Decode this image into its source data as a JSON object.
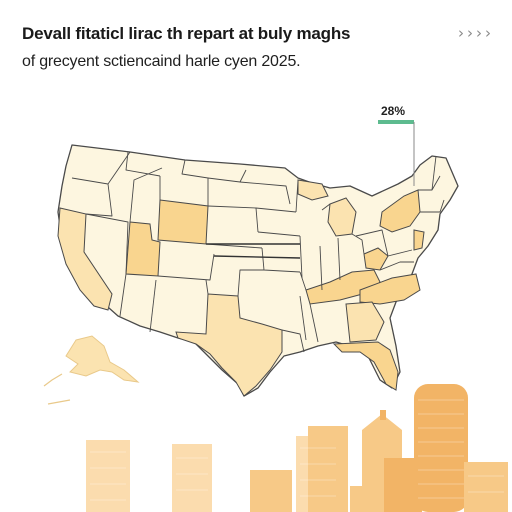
{
  "header": {
    "title": "Devall fitaticl lirac th repart at buly maghs",
    "subtitle": "of grecyent sctiencaind harle cyen 2025.",
    "nav_icon": "chevrons-right"
  },
  "callout": {
    "label": "28%"
  },
  "colors": {
    "state_fill": "#fdf6e0",
    "state_stroke": "#4a4a4a",
    "highlight_light": "#fbe3b0",
    "highlight": "#f9d58f",
    "callout_bar": "#5dbb8f",
    "skyline_light": "#fbdcae",
    "skyline_mid": "#f7c987",
    "skyline_dark": "#f2b466"
  }
}
